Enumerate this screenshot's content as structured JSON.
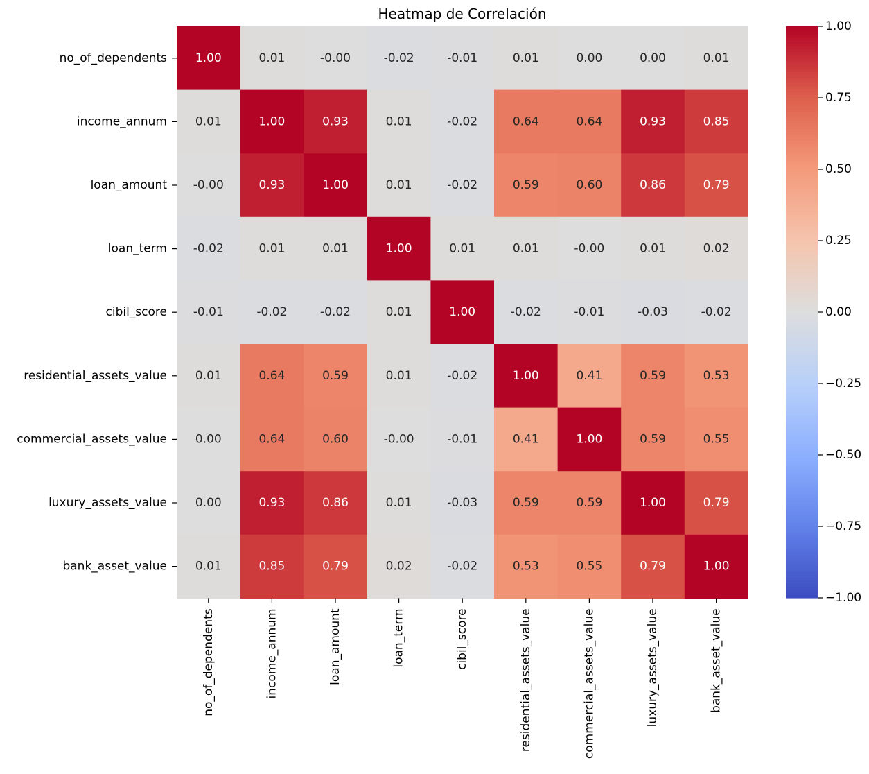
{
  "chart_data": {
    "type": "heatmap",
    "title": "Heatmap de Correlación",
    "colormap": "coolwarm",
    "value_range": [
      -1.0,
      1.0
    ],
    "annotation_format": "0.00",
    "row_labels": [
      "no_of_dependents",
      "income_annum",
      "loan_amount",
      "loan_term",
      "cibil_score",
      "residential_assets_value",
      "commercial_assets_value",
      "luxury_assets_value",
      "bank_asset_value"
    ],
    "col_labels": [
      "no_of_dependents",
      "income_annum",
      "loan_amount",
      "loan_term",
      "cibil_score",
      "residential_assets_value",
      "commercial_assets_value",
      "luxury_assets_value",
      "bank_asset_value"
    ],
    "values": [
      [
        1.0,
        0.01,
        -0.0,
        -0.02,
        -0.01,
        0.01,
        0.0,
        0.0,
        0.01
      ],
      [
        0.01,
        1.0,
        0.93,
        0.01,
        -0.02,
        0.64,
        0.64,
        0.93,
        0.85
      ],
      [
        -0.0,
        0.93,
        1.0,
        0.01,
        -0.02,
        0.59,
        0.6,
        0.86,
        0.79
      ],
      [
        -0.02,
        0.01,
        0.01,
        1.0,
        0.01,
        0.01,
        -0.0,
        0.01,
        0.02
      ],
      [
        -0.01,
        -0.02,
        -0.02,
        0.01,
        1.0,
        -0.02,
        -0.01,
        -0.03,
        -0.02
      ],
      [
        0.01,
        0.64,
        0.59,
        0.01,
        -0.02,
        1.0,
        0.41,
        0.59,
        0.53
      ],
      [
        0.0,
        0.64,
        0.6,
        -0.0,
        -0.01,
        0.41,
        1.0,
        0.59,
        0.55
      ],
      [
        0.0,
        0.93,
        0.86,
        0.01,
        -0.03,
        0.59,
        0.59,
        1.0,
        0.79
      ],
      [
        0.01,
        0.85,
        0.79,
        0.02,
        -0.02,
        0.53,
        0.55,
        0.79,
        1.0
      ]
    ],
    "annotations": [
      [
        "1.00",
        "0.01",
        "-0.00",
        "-0.02",
        "-0.01",
        "0.01",
        "0.00",
        "0.00",
        "0.01"
      ],
      [
        "0.01",
        "1.00",
        "0.93",
        "0.01",
        "-0.02",
        "0.64",
        "0.64",
        "0.93",
        "0.85"
      ],
      [
        "-0.00",
        "0.93",
        "1.00",
        "0.01",
        "-0.02",
        "0.59",
        "0.60",
        "0.86",
        "0.79"
      ],
      [
        "-0.02",
        "0.01",
        "0.01",
        "1.00",
        "0.01",
        "0.01",
        "-0.00",
        "0.01",
        "0.02"
      ],
      [
        "-0.01",
        "-0.02",
        "-0.02",
        "0.01",
        "1.00",
        "-0.02",
        "-0.01",
        "-0.03",
        "-0.02"
      ],
      [
        "0.01",
        "0.64",
        "0.59",
        "0.01",
        "-0.02",
        "1.00",
        "0.41",
        "0.59",
        "0.53"
      ],
      [
        "0.00",
        "0.64",
        "0.60",
        "-0.00",
        "-0.01",
        "0.41",
        "1.00",
        "0.59",
        "0.55"
      ],
      [
        "0.00",
        "0.93",
        "0.86",
        "0.01",
        "-0.03",
        "0.59",
        "0.59",
        "1.00",
        "0.79"
      ],
      [
        "0.01",
        "0.85",
        "0.79",
        "0.02",
        "-0.02",
        "0.53",
        "0.55",
        "0.79",
        "1.00"
      ]
    ],
    "colorbar": {
      "ticks": [
        1.0,
        0.75,
        0.5,
        0.25,
        0.0,
        -0.25,
        -0.5,
        -0.75,
        -1.0
      ],
      "tick_labels": [
        "1.00",
        "0.75",
        "0.50",
        "0.25",
        "0.00",
        "−0.25",
        "−0.50",
        "−0.75",
        "−1.00"
      ]
    },
    "xlabel": "",
    "ylabel": ""
  }
}
